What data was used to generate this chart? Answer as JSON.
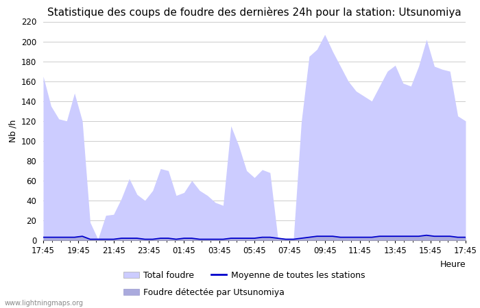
{
  "title": "Statistique des coups de foudre des dernières 24h pour la station: Utsunomiya",
  "ylabel": "Nb /h",
  "xlabel": "Heure",
  "watermark": "www.lightningmaps.org",
  "ylim": [
    0,
    220
  ],
  "yticks": [
    0,
    20,
    40,
    60,
    80,
    100,
    120,
    140,
    160,
    180,
    200,
    220
  ],
  "xtick_labels": [
    "17:45",
    "19:45",
    "21:45",
    "23:45",
    "01:45",
    "03:45",
    "05:45",
    "07:45",
    "09:45",
    "11:45",
    "13:45",
    "15:45",
    "17:45"
  ],
  "color_total": "#ccccff",
  "color_utsunomiya": "#aaaadd",
  "color_moyenne": "#0000cc",
  "total_foudre": [
    165,
    135,
    122,
    120,
    148,
    120,
    18,
    1,
    25,
    26,
    42,
    62,
    46,
    40,
    50,
    72,
    70,
    45,
    48,
    60,
    50,
    45,
    38,
    35,
    115,
    95,
    70,
    63,
    71,
    68,
    2,
    2,
    2,
    119,
    185,
    192,
    207,
    190,
    175,
    160,
    150,
    145,
    140,
    155,
    170,
    176,
    158,
    155,
    175,
    202,
    175,
    172,
    170,
    125,
    120
  ],
  "utsunomiya": [
    3,
    3,
    3,
    3,
    3,
    4,
    1,
    1,
    1,
    1,
    2,
    2,
    2,
    1,
    1,
    2,
    2,
    2,
    2,
    2,
    1,
    1,
    1,
    1,
    2,
    2,
    2,
    2,
    3,
    3,
    2,
    1,
    1,
    2,
    3,
    4,
    4,
    4,
    3,
    3,
    3,
    3,
    3,
    4,
    4,
    4,
    4,
    4,
    4,
    5,
    4,
    4,
    4,
    3,
    3
  ],
  "moyenne": [
    3,
    3,
    3,
    3,
    3,
    4,
    1,
    1,
    1,
    1,
    2,
    2,
    2,
    1,
    1,
    2,
    2,
    1,
    2,
    2,
    1,
    1,
    1,
    1,
    2,
    2,
    2,
    2,
    3,
    3,
    2,
    1,
    1,
    2,
    3,
    4,
    4,
    4,
    3,
    3,
    3,
    3,
    3,
    4,
    4,
    4,
    4,
    4,
    4,
    5,
    4,
    4,
    4,
    3,
    3
  ],
  "n_points": 55,
  "background_color": "#ffffff",
  "grid_color": "#cccccc",
  "title_fontsize": 11,
  "label_fontsize": 9,
  "tick_fontsize": 8.5
}
